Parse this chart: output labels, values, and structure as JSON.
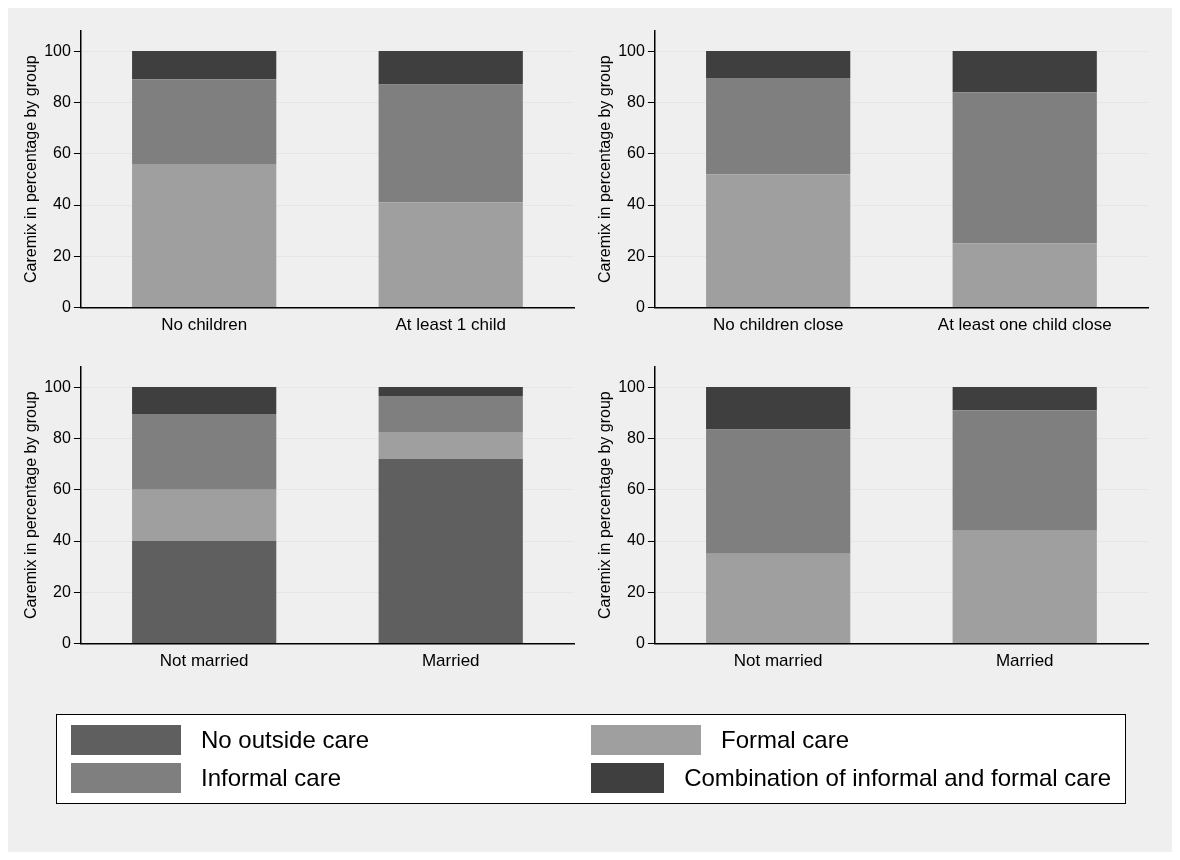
{
  "chart_data": [
    {
      "type": "bar",
      "stacked": true,
      "ylabel": "Caremix in percentage by group",
      "categories": [
        "No children",
        "At least 1 child"
      ],
      "ylim": [
        0,
        108
      ],
      "yticks": [
        0,
        20,
        40,
        60,
        80,
        100
      ],
      "grid": "y",
      "series": [
        {
          "color": "#9f9f9f",
          "values": [
            56,
            41
          ]
        },
        {
          "color": "#7f7f7f",
          "values": [
            33,
            46
          ]
        },
        {
          "color": "#3f3f3f",
          "values": [
            11,
            13
          ]
        }
      ]
    },
    {
      "type": "bar",
      "stacked": true,
      "ylabel": "Caremix in percentage by group",
      "categories": [
        "No children close",
        "At least one child close"
      ],
      "ylim": [
        0,
        108
      ],
      "yticks": [
        0,
        20,
        40,
        60,
        80,
        100
      ],
      "grid": "y",
      "series": [
        {
          "color": "#9f9f9f",
          "values": [
            52,
            25
          ]
        },
        {
          "color": "#7f7f7f",
          "values": [
            37.5,
            59
          ]
        },
        {
          "color": "#3f3f3f",
          "values": [
            10.5,
            16
          ]
        }
      ]
    },
    {
      "type": "bar",
      "stacked": true,
      "ylabel": "Caremix in percentage by group",
      "categories": [
        "Not married",
        "Married"
      ],
      "ylim": [
        0,
        108
      ],
      "yticks": [
        0,
        20,
        40,
        60,
        80,
        100
      ],
      "grid": "y",
      "legend": "bottom",
      "series": [
        {
          "name": "No outside care",
          "color": "#5f5f5f",
          "values": [
            40,
            72
          ]
        },
        {
          "name": "Formal care",
          "color": "#9f9f9f",
          "values": [
            20,
            10.5
          ]
        },
        {
          "name": "Informal care",
          "color": "#7f7f7f",
          "values": [
            29.5,
            14
          ]
        },
        {
          "name": "Combination of informal and formal care",
          "color": "#3f3f3f",
          "values": [
            10.5,
            3.5
          ]
        }
      ]
    },
    {
      "type": "bar",
      "stacked": true,
      "ylabel": "Caremix in percentage by group",
      "categories": [
        "Not married",
        "Married"
      ],
      "ylim": [
        0,
        108
      ],
      "yticks": [
        0,
        20,
        40,
        60,
        80,
        100
      ],
      "grid": "y",
      "series": [
        {
          "color": "#9f9f9f",
          "values": [
            35,
            44
          ]
        },
        {
          "color": "#7f7f7f",
          "values": [
            48.5,
            47
          ]
        },
        {
          "color": "#3f3f3f",
          "values": [
            16.5,
            9
          ]
        }
      ]
    }
  ]
}
